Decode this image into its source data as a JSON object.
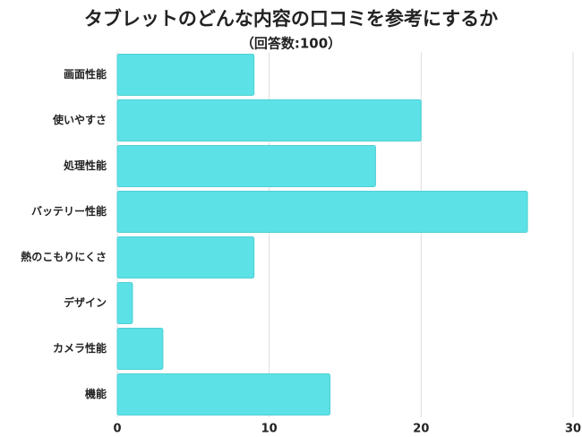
{
  "chart_data": {
    "type": "bar",
    "orientation": "horizontal",
    "title": "タブレットのどんな内容の口コミを参考にするか",
    "subtitle": "（回答数:100）",
    "categories": [
      "画面性能",
      "使いやすさ",
      "処理性能",
      "バッテリー性能",
      "熱のこもりにくさ",
      "デザイン",
      "カメラ性能",
      "機能"
    ],
    "values": [
      9,
      20,
      17,
      27,
      9,
      1,
      3,
      14
    ],
    "color": "#5ce1e6",
    "xlim": [
      0,
      30
    ],
    "xticks": [
      0,
      10,
      20,
      30
    ],
    "grid": true
  }
}
